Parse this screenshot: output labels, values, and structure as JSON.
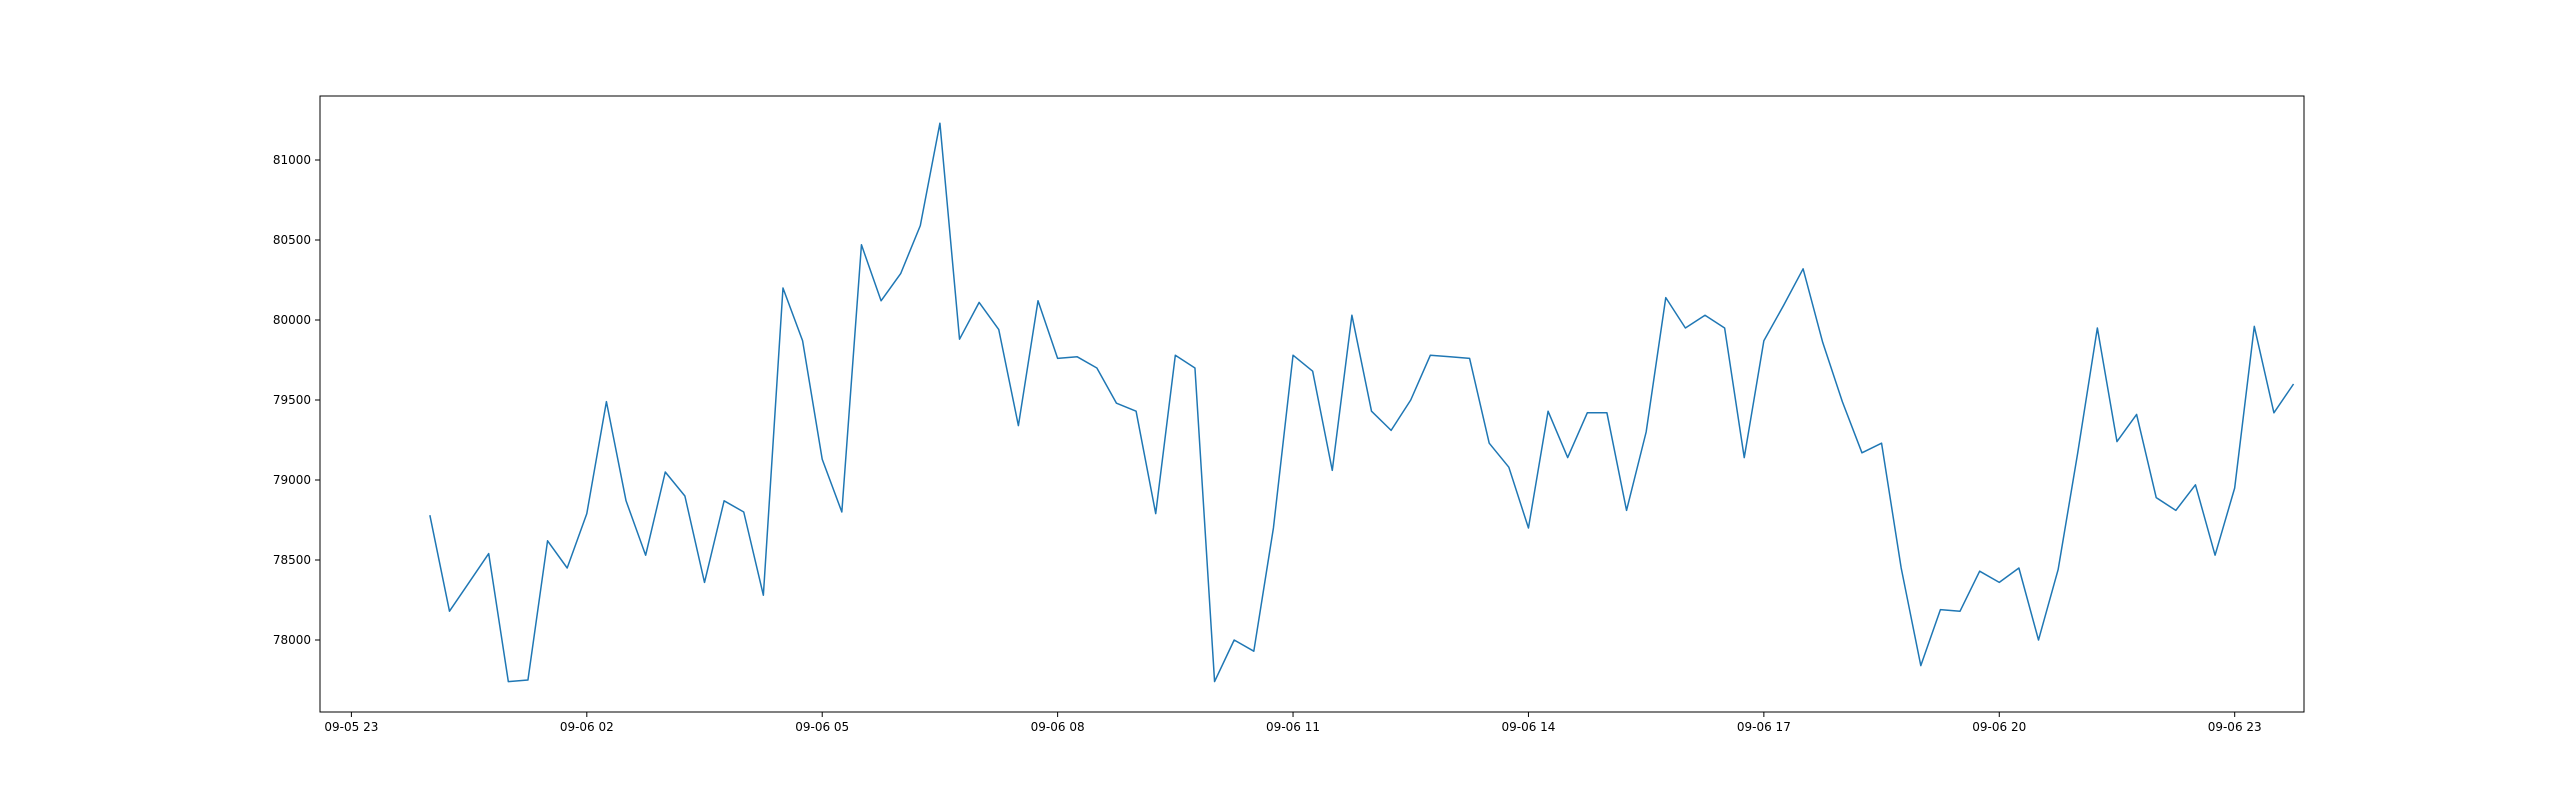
{
  "chart_data": {
    "type": "line",
    "title": "",
    "xlabel": "",
    "ylabel": "",
    "grid": false,
    "legend": "none",
    "line_color": "#1f77b4",
    "xlim": [
      "2024-09-05 22:36",
      "2024-09-06 23:53"
    ],
    "ylim": [
      77550,
      81400
    ],
    "x_ticks": [
      {
        "value": "2024-09-05 23:00",
        "label": "09-05 23"
      },
      {
        "value": "2024-09-06 02:00",
        "label": "09-06 02"
      },
      {
        "value": "2024-09-06 05:00",
        "label": "09-06 05"
      },
      {
        "value": "2024-09-06 08:00",
        "label": "09-06 08"
      },
      {
        "value": "2024-09-06 11:00",
        "label": "09-06 11"
      },
      {
        "value": "2024-09-06 14:00",
        "label": "09-06 14"
      },
      {
        "value": "2024-09-06 17:00",
        "label": "09-06 17"
      },
      {
        "value": "2024-09-06 20:00",
        "label": "09-06 20"
      },
      {
        "value": "2024-09-06 23:00",
        "label": "09-06 23"
      }
    ],
    "y_ticks": [
      {
        "value": 78000,
        "label": "78000"
      },
      {
        "value": 78500,
        "label": "78500"
      },
      {
        "value": 79000,
        "label": "79000"
      },
      {
        "value": 79500,
        "label": "79500"
      },
      {
        "value": 80000,
        "label": "80000"
      },
      {
        "value": 80500,
        "label": "80500"
      },
      {
        "value": 81000,
        "label": "81000"
      }
    ],
    "series": [
      {
        "x": [
          "2024-09-06 00:00",
          "2024-09-06 00:15",
          "2024-09-06 00:30",
          "2024-09-06 00:45",
          "2024-09-06 01:00",
          "2024-09-06 01:15",
          "2024-09-06 01:30",
          "2024-09-06 01:45",
          "2024-09-06 02:00",
          "2024-09-06 02:15",
          "2024-09-06 02:30",
          "2024-09-06 02:45",
          "2024-09-06 03:00",
          "2024-09-06 03:15",
          "2024-09-06 03:30",
          "2024-09-06 03:45",
          "2024-09-06 04:00",
          "2024-09-06 04:15",
          "2024-09-06 04:30",
          "2024-09-06 04:45",
          "2024-09-06 05:00",
          "2024-09-06 05:15",
          "2024-09-06 05:30",
          "2024-09-06 05:45",
          "2024-09-06 06:00",
          "2024-09-06 06:15",
          "2024-09-06 06:30",
          "2024-09-06 06:45",
          "2024-09-06 07:00",
          "2024-09-06 07:15",
          "2024-09-06 07:30",
          "2024-09-06 07:45",
          "2024-09-06 08:00",
          "2024-09-06 08:15",
          "2024-09-06 08:30",
          "2024-09-06 08:45",
          "2024-09-06 09:00",
          "2024-09-06 09:15",
          "2024-09-06 09:30",
          "2024-09-06 09:45",
          "2024-09-06 10:00",
          "2024-09-06 10:15",
          "2024-09-06 10:30",
          "2024-09-06 10:45",
          "2024-09-06 11:00",
          "2024-09-06 11:15",
          "2024-09-06 11:30",
          "2024-09-06 11:45",
          "2024-09-06 12:00",
          "2024-09-06 12:15",
          "2024-09-06 12:30",
          "2024-09-06 12:45",
          "2024-09-06 13:00",
          "2024-09-06 13:15",
          "2024-09-06 13:30",
          "2024-09-06 13:45",
          "2024-09-06 14:00",
          "2024-09-06 14:15",
          "2024-09-06 14:30",
          "2024-09-06 14:45",
          "2024-09-06 15:00",
          "2024-09-06 15:15",
          "2024-09-06 15:30",
          "2024-09-06 15:45",
          "2024-09-06 16:00",
          "2024-09-06 16:15",
          "2024-09-06 16:30",
          "2024-09-06 16:45",
          "2024-09-06 17:00",
          "2024-09-06 17:15",
          "2024-09-06 17:30",
          "2024-09-06 17:45",
          "2024-09-06 18:00",
          "2024-09-06 18:15",
          "2024-09-06 18:30",
          "2024-09-06 18:45",
          "2024-09-06 19:00",
          "2024-09-06 19:15",
          "2024-09-06 19:30",
          "2024-09-06 19:45",
          "2024-09-06 20:00",
          "2024-09-06 20:15",
          "2024-09-06 20:30",
          "2024-09-06 20:45",
          "2024-09-06 21:00",
          "2024-09-06 21:15",
          "2024-09-06 21:30",
          "2024-09-06 21:45",
          "2024-09-06 22:00",
          "2024-09-06 22:15",
          "2024-09-06 22:30",
          "2024-09-06 22:45",
          "2024-09-06 23:00",
          "2024-09-06 23:15",
          "2024-09-06 23:30",
          "2024-09-06 23:45"
        ],
        "values": [
          78780,
          78180,
          78360,
          78540,
          77740,
          77750,
          78620,
          78450,
          78790,
          79490,
          78870,
          78530,
          79050,
          78900,
          78360,
          78870,
          78800,
          78280,
          80200,
          79870,
          79130,
          78800,
          80470,
          80120,
          80290,
          80590,
          81230,
          79880,
          80110,
          79940,
          79340,
          80120,
          79760,
          79770,
          79700,
          79480,
          79430,
          78790,
          79780,
          79700,
          77740,
          78000,
          77930,
          78700,
          79780,
          79680,
          79060,
          80030,
          79430,
          79310,
          79500,
          79780,
          79770,
          79760,
          79230,
          79080,
          78700,
          79430,
          79140,
          79420,
          79420,
          78810,
          79300,
          80140,
          79950,
          80030,
          79950,
          79140,
          79870,
          80090,
          80320,
          79860,
          79490,
          79170,
          79230,
          78450,
          77840,
          78190,
          78180,
          78430,
          78360,
          78450,
          78000,
          78440,
          79170,
          79950,
          79240,
          79410,
          78890,
          78810,
          78970,
          78530,
          78950,
          79960,
          79420,
          79600
        ]
      }
    ]
  }
}
